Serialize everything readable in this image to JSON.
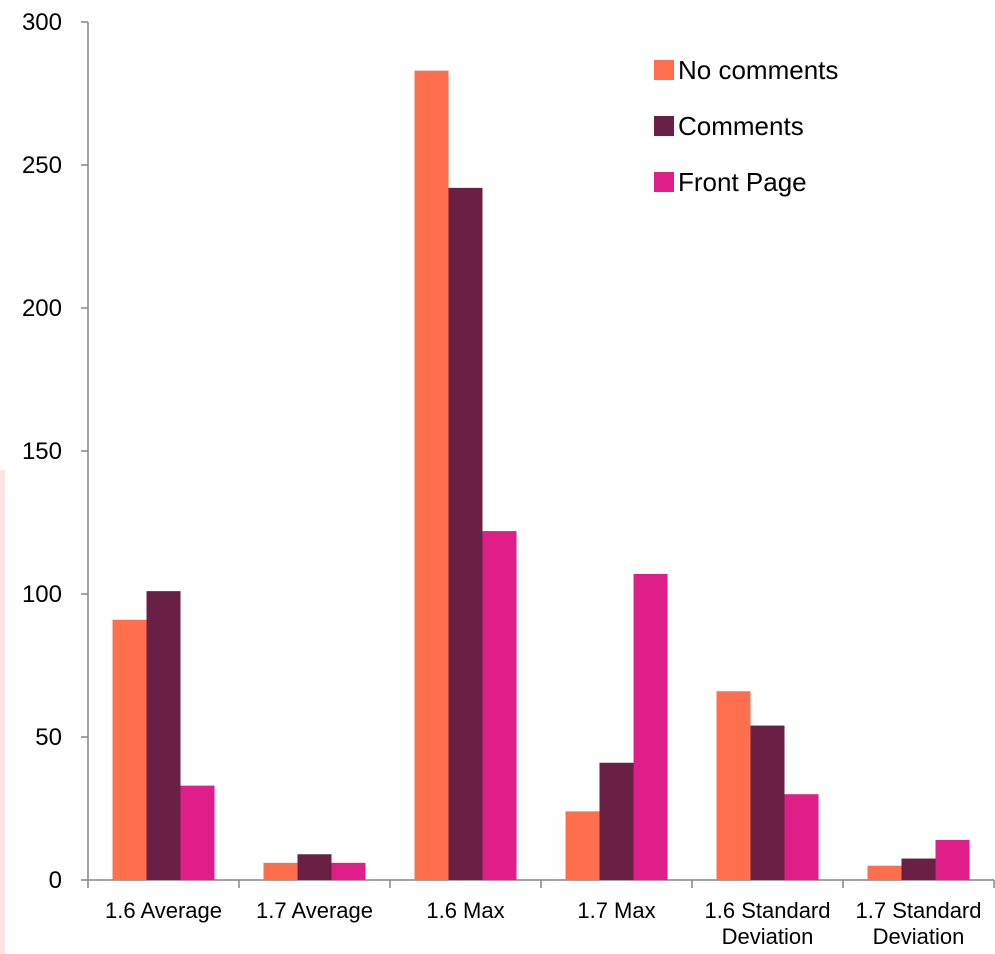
{
  "chart_data": {
    "type": "bar",
    "categories": [
      [
        "1.6 Average"
      ],
      [
        "1.7 Average"
      ],
      [
        "1.6 Max"
      ],
      [
        "1.7 Max"
      ],
      [
        "1.6 Standard",
        "Deviation"
      ],
      [
        "1.7 Standard",
        "Deviation"
      ]
    ],
    "series": [
      {
        "name": "No comments",
        "color": "#ff6f4e",
        "values": [
          91,
          6,
          283,
          24,
          66,
          5
        ]
      },
      {
        "name": "Comments",
        "color": "#6a1f45",
        "values": [
          101,
          9,
          242,
          41,
          54,
          7.5
        ]
      },
      {
        "name": "Front Page",
        "color": "#e01e8a",
        "values": [
          33,
          6,
          122,
          107,
          30,
          14
        ]
      }
    ],
    "yticks": [
      "0",
      "50",
      "100",
      "150",
      "200",
      "250",
      "300"
    ],
    "ylim": [
      0,
      300
    ],
    "grid": false,
    "legend_position": "top-right"
  }
}
